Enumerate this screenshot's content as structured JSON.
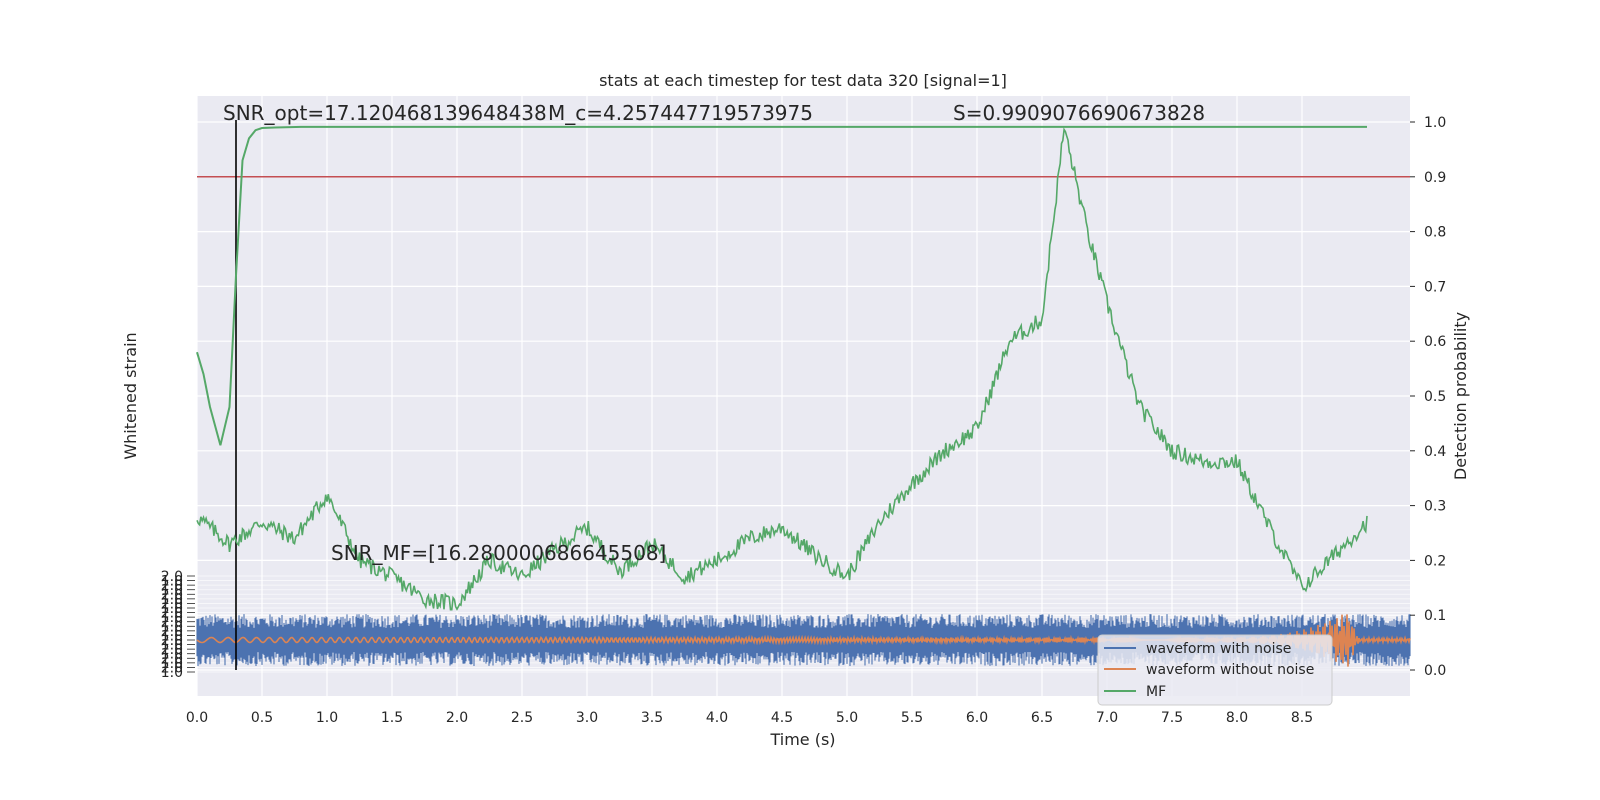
{
  "chart_data": {
    "type": "line",
    "title": "stats at each timestep for test data 320 [signal=1]",
    "xlabel": "Time (s)",
    "ylabel_left": "Whitened strain",
    "ylabel_right": "Detection probability",
    "xlim": [
      0.0,
      9.0
    ],
    "ylim_right": [
      -0.05,
      1.05
    ],
    "xticks": [
      "0.0",
      "0.5",
      "1.0",
      "1.5",
      "2.0",
      "2.5",
      "3.0",
      "3.5",
      "4.0",
      "4.5",
      "5.0",
      "5.5",
      "6.0",
      "6.5",
      "7.0",
      "7.5",
      "8.0",
      "8.5"
    ],
    "yticks_right": [
      "0.0",
      "0.1",
      "0.2",
      "0.3",
      "0.4",
      "0.5",
      "0.6",
      "0.7",
      "0.8",
      "0.9",
      "1.0"
    ],
    "strain_axis_ticks": [
      "2.0",
      "1.0"
    ],
    "grid": true,
    "threshold_line": 0.9,
    "merger_time_line": 0.3,
    "annotations": {
      "snr_opt": "SNR_opt=17.120468139648438",
      "mc": "M_c=4.257447719573975",
      "s": "S=0.9909076690673828",
      "snr_mf": "SNR_MF=[16.280000686645508]"
    },
    "legend": {
      "position": "lower-right",
      "entries": [
        "waveform with noise",
        "waveform without noise",
        "MF"
      ]
    },
    "colors": {
      "noise": "#4c72b0",
      "clean": "#dd8452",
      "mf": "#55a868",
      "threshold": "#c44e52",
      "bg": "#eaeaf2",
      "grid": "#ffffff"
    },
    "series": [
      {
        "name": "MF",
        "x": [
          0.0,
          0.25,
          0.5,
          0.75,
          1.0,
          1.25,
          1.5,
          1.75,
          2.0,
          2.25,
          2.5,
          2.75,
          3.0,
          3.25,
          3.5,
          3.75,
          4.0,
          4.25,
          4.5,
          4.75,
          5.0,
          5.25,
          5.5,
          5.75,
          6.0,
          6.25,
          6.5,
          6.67,
          6.85,
          7.0,
          7.25,
          7.5,
          7.75,
          8.0,
          8.25,
          8.5,
          8.75,
          9.0
        ],
        "y": [
          0.28,
          0.23,
          0.27,
          0.24,
          0.32,
          0.2,
          0.17,
          0.13,
          0.12,
          0.2,
          0.17,
          0.22,
          0.26,
          0.18,
          0.23,
          0.17,
          0.2,
          0.24,
          0.26,
          0.21,
          0.17,
          0.27,
          0.34,
          0.4,
          0.44,
          0.6,
          0.64,
          0.99,
          0.8,
          0.67,
          0.48,
          0.4,
          0.38,
          0.38,
          0.26,
          0.15,
          0.21,
          0.27
        ]
      },
      {
        "name": "detection probability",
        "x": [
          0.0,
          0.05,
          0.1,
          0.18,
          0.25,
          0.3,
          0.35,
          0.4,
          0.45,
          0.5,
          0.6,
          0.8,
          1.0,
          9.0
        ],
        "y": [
          0.58,
          0.54,
          0.48,
          0.41,
          0.48,
          0.72,
          0.93,
          0.97,
          0.985,
          0.989,
          0.99,
          0.991,
          0.991,
          0.991
        ]
      }
    ]
  }
}
